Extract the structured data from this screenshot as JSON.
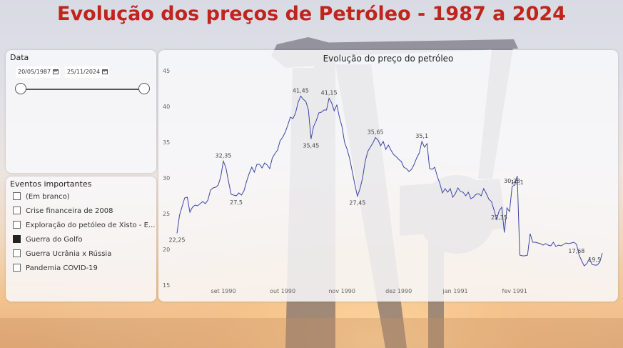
{
  "page_title": "Evolução dos preços de Petróleo - 1987 a 2024",
  "date_filter": {
    "title": "Data",
    "start_date": "20/05/1987",
    "end_date": "25/11/2024"
  },
  "events_filter": {
    "title": "Eventos importantes",
    "items": [
      {
        "label": "(Em branco)",
        "checked": false
      },
      {
        "label": "Crise financeira de 2008",
        "checked": false
      },
      {
        "label": "Exploração do petóleo de Xisto - E...",
        "checked": false
      },
      {
        "label": "Guerra do Golfo",
        "checked": true
      },
      {
        "label": "Guerra Ucrânia x Rússia",
        "checked": false
      },
      {
        "label": "Pandemia COVID-19",
        "checked": false
      }
    ]
  },
  "chart_data": {
    "type": "line",
    "title": "Evolução do preço do petróleo",
    "xlabel": "",
    "ylabel": "",
    "ylim": [
      15,
      45
    ],
    "y_ticks": [
      15,
      20,
      25,
      30,
      35,
      40,
      45
    ],
    "x_ticks": [
      {
        "label": "set 1990",
        "index": 18
      },
      {
        "label": "out 1990",
        "index": 41
      },
      {
        "label": "nov 1990",
        "index": 64
      },
      {
        "label": "dez 1990",
        "index": 86
      },
      {
        "label": "jan 1991",
        "index": 108
      },
      {
        "label": "fev 1991",
        "index": 131
      }
    ],
    "color": "#3b45a8",
    "values": [
      22.25,
      24.8,
      26.0,
      27.2,
      27.3,
      25.2,
      25.9,
      26.2,
      26.1,
      26.4,
      26.7,
      26.4,
      26.9,
      28.3,
      28.6,
      28.7,
      29.0,
      30.2,
      32.35,
      31.4,
      29.5,
      27.7,
      27.6,
      27.5,
      27.9,
      27.6,
      28.2,
      29.5,
      30.6,
      31.5,
      30.8,
      31.9,
      31.9,
      31.4,
      32.1,
      31.8,
      31.3,
      32.8,
      33.4,
      33.9,
      35.2,
      35.7,
      36.4,
      37.4,
      38.5,
      38.3,
      39.1,
      40.6,
      41.45,
      41.0,
      40.7,
      39.5,
      35.45,
      37.2,
      38.0,
      39.1,
      39.2,
      39.5,
      39.5,
      41.15,
      40.5,
      39.4,
      40.2,
      38.5,
      37.2,
      35.0,
      34.0,
      32.7,
      30.9,
      29.1,
      27.45,
      28.5,
      30.0,
      32.3,
      33.7,
      34.3,
      34.9,
      35.65,
      35.3,
      34.5,
      35.1,
      34.0,
      34.6,
      33.9,
      33.3,
      33.0,
      32.6,
      32.3,
      31.5,
      31.3,
      30.9,
      31.2,
      31.9,
      32.8,
      33.5,
      35.1,
      34.3,
      34.8,
      31.3,
      31.2,
      31.5,
      30.2,
      29.2,
      27.9,
      28.5,
      28.0,
      28.5,
      27.3,
      27.8,
      28.6,
      28.1,
      28.0,
      27.5,
      28.0,
      27.1,
      27.3,
      27.7,
      27.8,
      27.5,
      28.5,
      27.8,
      27.0,
      26.7,
      25.5,
      24.2,
      25.4,
      25.9,
      22.35,
      25.8,
      25.3,
      28.8,
      29.0,
      30.28,
      19.2,
      19.1,
      19.1,
      19.2,
      22.2,
      21.0,
      21.0,
      20.9,
      20.8,
      20.6,
      20.8,
      20.6,
      20.5,
      21.0,
      20.4,
      20.6,
      20.5,
      20.7,
      20.9,
      20.8,
      20.9,
      21.0,
      20.7,
      19.2,
      18.4,
      17.68,
      18.0,
      18.7,
      17.9,
      17.8,
      17.8,
      18.2,
      19.5
    ],
    "annotations": [
      {
        "index": 0,
        "text": "22,25",
        "pos": "below"
      },
      {
        "index": 18,
        "text": "32,35",
        "pos": "above"
      },
      {
        "index": 23,
        "text": "27,5",
        "pos": "below"
      },
      {
        "index": 48,
        "text": "41,45",
        "pos": "above"
      },
      {
        "index": 52,
        "text": "35,45",
        "pos": "below"
      },
      {
        "index": 59,
        "text": "41,15",
        "pos": "above"
      },
      {
        "index": 70,
        "text": "27,45",
        "pos": "below"
      },
      {
        "index": 77,
        "text": "35,65",
        "pos": "above"
      },
      {
        "index": 95,
        "text": "35,1",
        "pos": "above"
      },
      {
        "index": 125,
        "text": "22,35",
        "pos": "below"
      },
      {
        "index": 130,
        "text": "30,28",
        "pos": "above"
      },
      {
        "index": 132,
        "text": "19,1",
        "pos": "below"
      },
      {
        "index": 155,
        "text": "17,68",
        "pos": "below"
      },
      {
        "index": 162,
        "text": "19,5",
        "pos": "above"
      }
    ]
  }
}
